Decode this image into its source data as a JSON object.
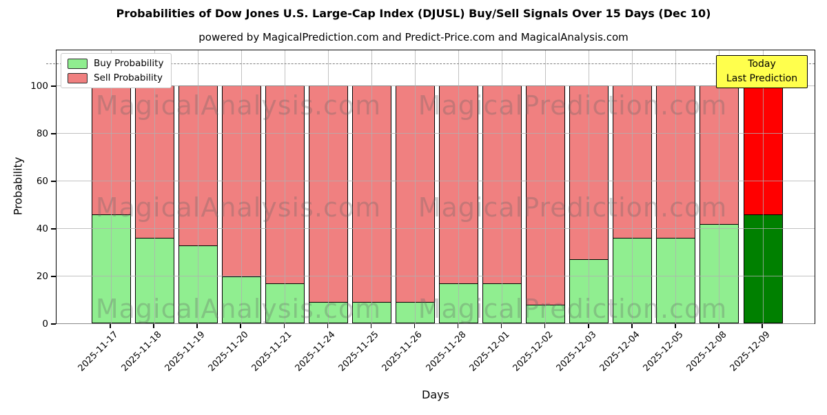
{
  "title": "Probabilities of Dow Jones U.S. Large-Cap Index (DJUSL) Buy/Sell Signals Over 15 Days (Dec 10)",
  "subtitle": "powered by MagicalPrediction.com and Predict-Price.com and MagicalAnalysis.com",
  "legend": {
    "items": [
      {
        "label": "Buy Probability",
        "color": "#90ee90"
      },
      {
        "label": "Sell Probability",
        "color": "#f08080"
      }
    ]
  },
  "annotation": {
    "line1": "Today",
    "line2": "Last Prediction",
    "bg_color": "#ffff4d",
    "border_color": "#000000"
  },
  "watermarks": {
    "left": "MagicalAnalysis.com",
    "right": "MagicalPrediction.com"
  },
  "chart_data": {
    "type": "bar",
    "stacked": true,
    "xlabel": "Days",
    "ylabel": "Probability",
    "categories": [
      "2025-11-17",
      "2025-11-18",
      "2025-11-19",
      "2025-11-20",
      "2025-11-21",
      "2025-11-24",
      "2025-11-25",
      "2025-11-26",
      "2025-11-28",
      "2025-12-01",
      "2025-12-02",
      "2025-12-03",
      "2025-12-04",
      "2025-12-05",
      "2025-12-08",
      "2025-12-09"
    ],
    "series": [
      {
        "name": "Buy Probability",
        "color": "#90ee90",
        "values": [
          46,
          36,
          33,
          20,
          17,
          9,
          9,
          9,
          17,
          17,
          8,
          27,
          36,
          36,
          42,
          46
        ]
      },
      {
        "name": "Sell Probability",
        "color": "#f08080",
        "values": [
          54,
          64,
          67,
          80,
          83,
          91,
          91,
          91,
          83,
          83,
          92,
          73,
          64,
          64,
          58,
          54
        ]
      }
    ],
    "today_bar": {
      "category": "2025-12-09",
      "index": 15,
      "buy_color": "#008000",
      "sell_color": "#ff0000"
    },
    "bar_edge_color": "#000000",
    "yticks": [
      0,
      20,
      40,
      60,
      80,
      100
    ],
    "ylim": [
      0,
      115
    ],
    "dashed_line_y": 110,
    "grid": true,
    "legend_position": "upper left"
  }
}
